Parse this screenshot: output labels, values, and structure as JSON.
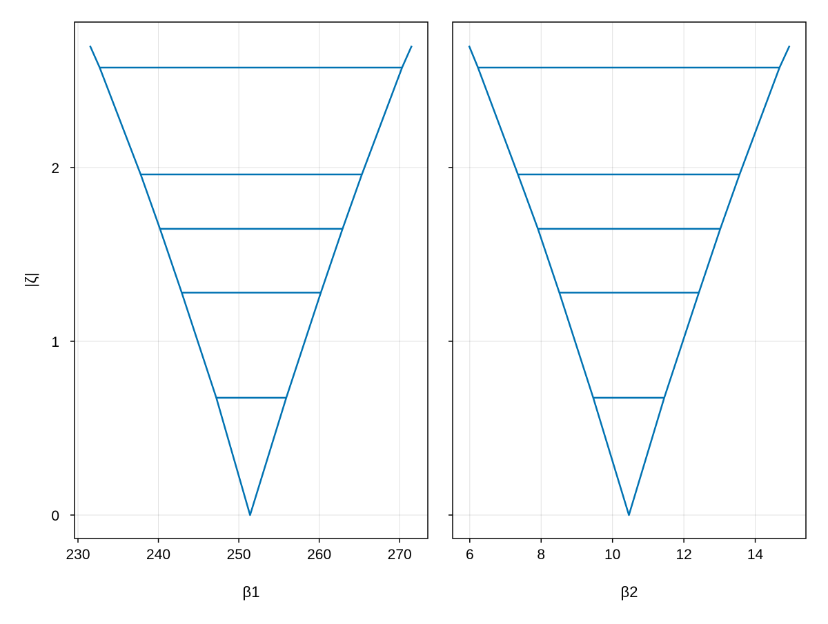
{
  "chart_data": [
    {
      "type": "line",
      "xlabel": "β1",
      "ylabel": "|ζ|",
      "xlim": [
        229.57,
        273.5
      ],
      "ylim": [
        -0.135,
        2.837
      ],
      "xticks": [
        230,
        240,
        250,
        260,
        270
      ],
      "yticks": [
        0,
        1,
        2
      ],
      "grid": true,
      "color": "#0072b2",
      "curve": {
        "x": [
          231.5,
          232.7,
          237.8,
          240.2,
          242.9,
          247.2,
          251.4,
          255.9,
          260.2,
          262.9,
          265.3,
          270.3,
          271.5
        ],
        "y": [
          2.7,
          2.575,
          1.96,
          1.647,
          1.28,
          0.675,
          0,
          0.675,
          1.28,
          1.647,
          1.96,
          2.575,
          2.7
        ]
      },
      "segments": [
        {
          "y": 0.675,
          "x": [
            247.2,
            255.9
          ]
        },
        {
          "y": 1.28,
          "x": [
            242.9,
            260.2
          ]
        },
        {
          "y": 1.647,
          "x": [
            240.2,
            262.9
          ]
        },
        {
          "y": 1.96,
          "x": [
            237.8,
            265.3
          ]
        },
        {
          "y": 2.575,
          "x": [
            232.7,
            270.3
          ]
        }
      ]
    },
    {
      "type": "line",
      "xlabel": "β2",
      "ylabel": "",
      "xlim": [
        5.52,
        15.42
      ],
      "ylim": [
        -0.135,
        2.837
      ],
      "xticks": [
        6,
        8,
        10,
        12,
        14
      ],
      "yticks": [
        0,
        1,
        2
      ],
      "grid": true,
      "color": "#0072b2",
      "curve": {
        "x": [
          5.98,
          6.23,
          7.35,
          7.91,
          8.51,
          9.46,
          10.46,
          11.45,
          12.42,
          13.02,
          13.56,
          14.68,
          14.96
        ],
        "y": [
          2.7,
          2.575,
          1.96,
          1.647,
          1.28,
          0.675,
          0,
          0.675,
          1.28,
          1.647,
          1.96,
          2.575,
          2.7
        ]
      },
      "segments": [
        {
          "y": 0.675,
          "x": [
            9.46,
            11.45
          ]
        },
        {
          "y": 1.28,
          "x": [
            8.51,
            12.42
          ]
        },
        {
          "y": 1.647,
          "x": [
            7.91,
            13.02
          ]
        },
        {
          "y": 1.96,
          "x": [
            7.35,
            13.56
          ]
        },
        {
          "y": 2.575,
          "x": [
            6.23,
            14.68
          ]
        }
      ]
    }
  ]
}
